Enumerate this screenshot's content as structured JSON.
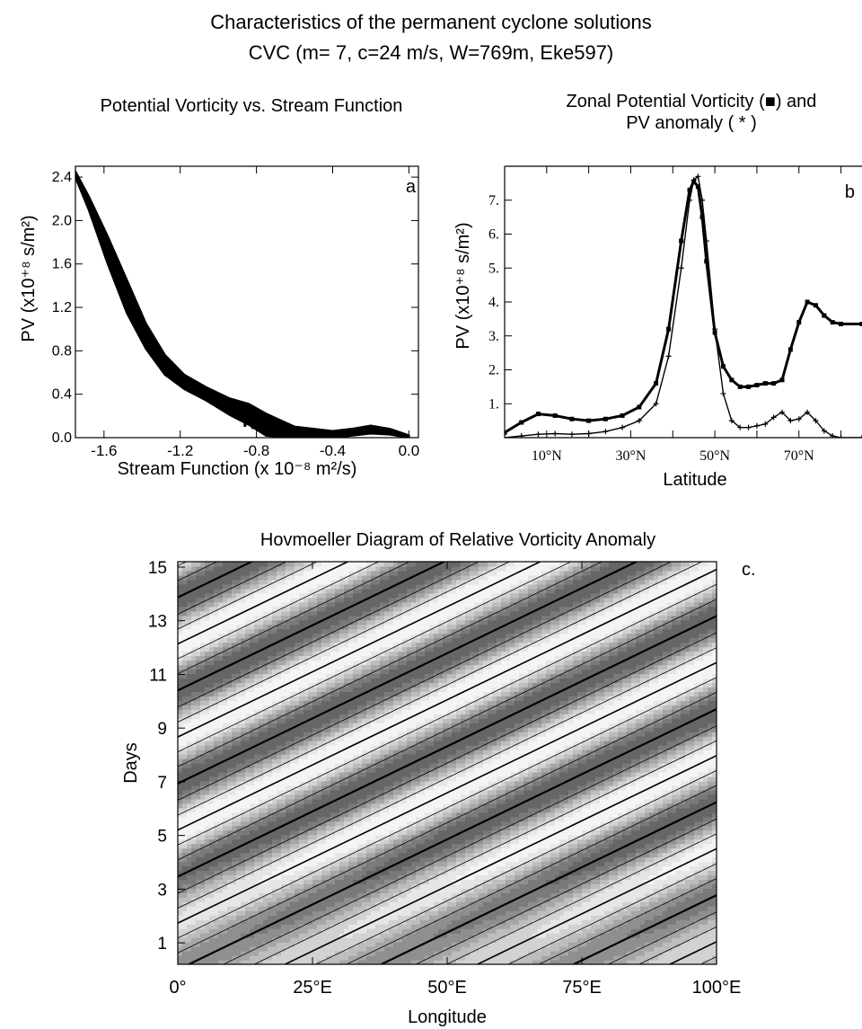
{
  "figure": {
    "title": "Characteristics of the permanent cyclone solutions",
    "subtitle": "CVC (m= 7, c=24 m/s, W=769m, Eke597)"
  },
  "chart_data": [
    {
      "id": "a",
      "type": "scatter",
      "panel_letter": "a",
      "title": "Potential Vorticity vs. Stream Function",
      "xlabel": "Stream Function (x 10⁻⁸ m²/s)",
      "ylabel": "PV (x10⁺⁸ s/m²)",
      "xlim": [
        -1.75,
        0.05
      ],
      "ylim": [
        0,
        2.5
      ],
      "xticks": [
        "-1.6",
        "-1.2",
        "-0.8",
        "-0.4",
        "0.0"
      ],
      "yticks": [
        "0.0",
        "0.4",
        "0.8",
        "1.2",
        "1.6",
        "2.0",
        "2.4"
      ],
      "series": [
        {
          "points_upper": [
            [
              -1.75,
              2.45
            ],
            [
              -1.68,
              2.22
            ],
            [
              -1.58,
              1.85
            ],
            [
              -1.48,
              1.45
            ],
            [
              -1.38,
              1.05
            ],
            [
              -1.28,
              0.76
            ],
            [
              -1.18,
              0.58
            ],
            [
              -1.06,
              0.46
            ],
            [
              -0.94,
              0.36
            ],
            [
              -0.84,
              0.31
            ],
            [
              -0.75,
              0.22
            ],
            [
              -0.6,
              0.1
            ],
            [
              -0.4,
              0.06
            ],
            [
              -0.3,
              0.08
            ],
            [
              -0.2,
              0.11
            ],
            [
              -0.1,
              0.08
            ],
            [
              0.0,
              0.02
            ]
          ],
          "points_lower": [
            [
              -1.75,
              2.4
            ],
            [
              -1.68,
              2.1
            ],
            [
              -1.58,
              1.6
            ],
            [
              -1.48,
              1.15
            ],
            [
              -1.38,
              0.82
            ],
            [
              -1.28,
              0.58
            ],
            [
              -1.18,
              0.45
            ],
            [
              -1.06,
              0.34
            ],
            [
              -0.94,
              0.21
            ],
            [
              -0.84,
              0.12
            ],
            [
              -0.75,
              0.02
            ],
            [
              -0.6,
              0.0
            ],
            [
              -0.4,
              0.0
            ],
            [
              -0.3,
              0.02
            ],
            [
              -0.2,
              0.04
            ],
            [
              -0.1,
              0.03
            ],
            [
              0.0,
              0.0
            ]
          ]
        }
      ]
    },
    {
      "id": "b",
      "type": "line",
      "panel_letter": "b",
      "title": "Zonal Potential Vorticity (■) and PV anomaly (*)",
      "title_line1": "Zonal Potential Vorticity (■) and",
      "title_line2": "PV anomaly ( * )",
      "xlabel": "Latitude",
      "ylabel": "PV (x10⁺⁸ s/m²)",
      "xlim": [
        0,
        85
      ],
      "ylim": [
        0,
        8
      ],
      "xticks": [
        "10°N",
        "30°N",
        "50°N",
        "70°N"
      ],
      "yticks": [
        "1.",
        "2.",
        "3.",
        "4.",
        "5.",
        "6.",
        "7."
      ],
      "series": [
        {
          "marker": "square",
          "x": [
            0,
            4,
            8,
            12,
            16,
            20,
            24,
            28,
            32,
            36,
            39,
            42,
            44,
            45,
            46,
            47,
            48,
            50,
            52,
            54,
            56,
            58,
            60,
            62,
            64,
            66,
            68,
            70,
            72,
            74,
            76,
            78,
            80,
            85
          ],
          "y": [
            0.15,
            0.45,
            0.7,
            0.65,
            0.55,
            0.5,
            0.55,
            0.65,
            0.9,
            1.6,
            3.2,
            5.8,
            7.3,
            7.55,
            7.4,
            6.5,
            5.2,
            3.1,
            2.1,
            1.7,
            1.5,
            1.5,
            1.55,
            1.6,
            1.6,
            1.7,
            2.6,
            3.4,
            4.0,
            3.9,
            3.6,
            3.4,
            3.35,
            3.35
          ]
        },
        {
          "marker": "plus",
          "x": [
            0,
            4,
            8,
            12,
            16,
            20,
            24,
            28,
            32,
            36,
            39,
            42,
            44,
            45,
            46,
            47,
            48,
            50,
            52,
            54,
            56,
            58,
            60,
            62,
            64,
            66,
            68,
            70,
            72,
            74,
            76,
            78,
            80,
            85
          ],
          "y": [
            0.0,
            0.05,
            0.1,
            0.12,
            0.1,
            0.12,
            0.18,
            0.3,
            0.5,
            1.0,
            2.4,
            5.0,
            7.0,
            7.6,
            7.7,
            7.0,
            5.8,
            3.2,
            1.3,
            0.5,
            0.3,
            0.3,
            0.35,
            0.4,
            0.6,
            0.75,
            0.5,
            0.55,
            0.75,
            0.5,
            0.2,
            0.05,
            0.0,
            0.0
          ]
        }
      ]
    },
    {
      "id": "c",
      "type": "heatmap",
      "panel_letter": "c.",
      "title": "Hovmoeller Diagram of Relative Vorticity Anomaly",
      "xlabel": "Longitude",
      "ylabel": "Days",
      "xlim": [
        0,
        100
      ],
      "ylim": [
        0.2,
        15.2
      ],
      "xticks": [
        "0°",
        "25°E",
        "50°E",
        "75°E",
        "100°E"
      ],
      "yticks": [
        "1",
        "3",
        "5",
        "7",
        "9",
        "11",
        "13",
        "15"
      ],
      "field": {
        "wavenumber": 7,
        "phase_speed_deg_per_day": 10.3,
        "levels": 8
      }
    }
  ]
}
